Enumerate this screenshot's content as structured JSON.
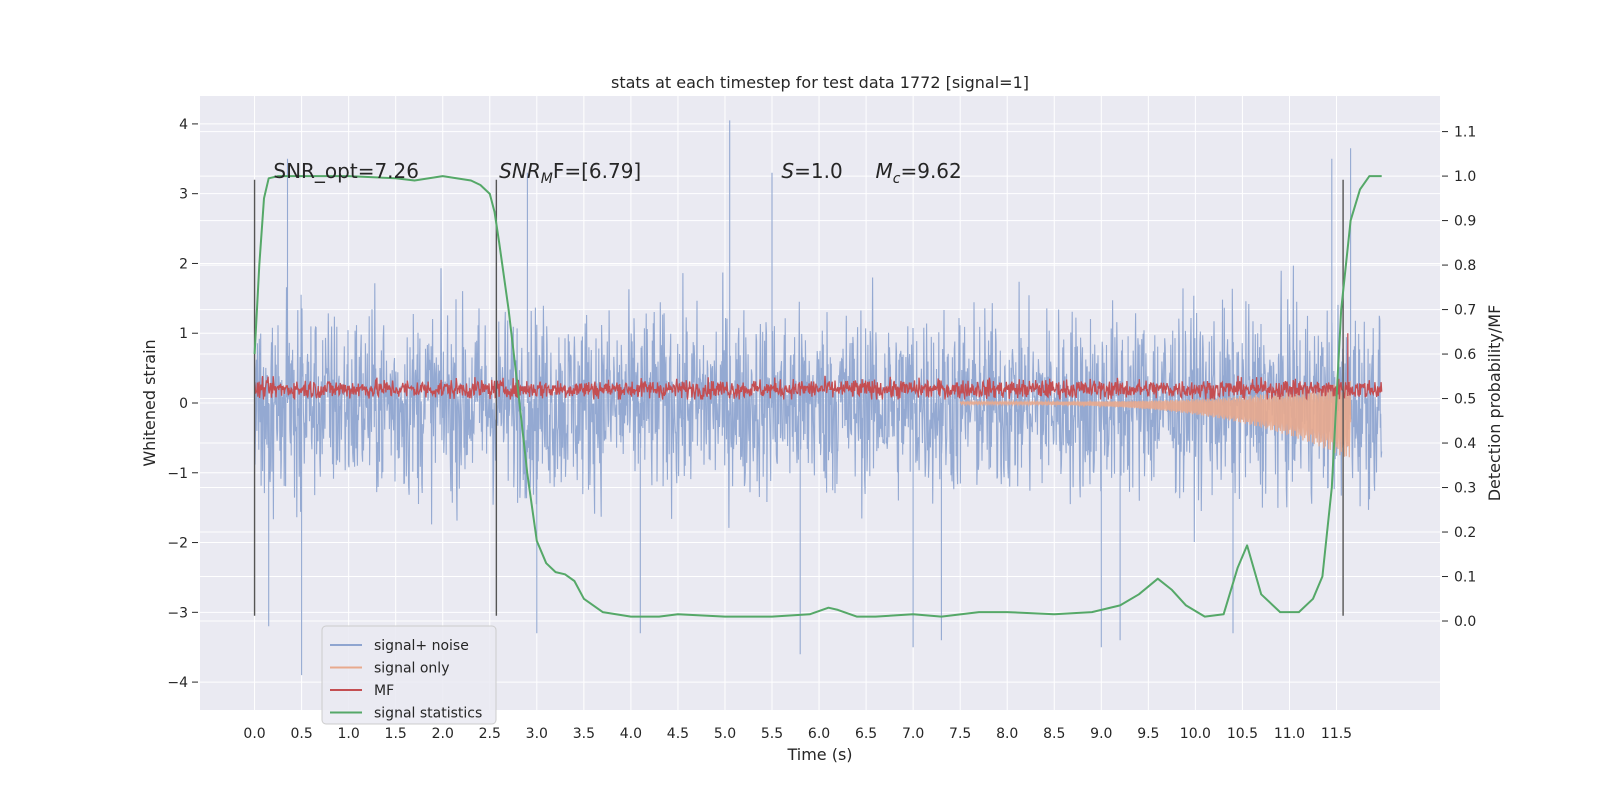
{
  "chart_data": {
    "type": "line",
    "title": "stats at each timestep for test data 1772 [signal=1]",
    "xlabel": "Time (s)",
    "ylabel": "Whitened strain",
    "ylabel_right": "Detection probability/MF",
    "xlim": [
      -0.58,
      12.6
    ],
    "ylim": [
      -4.4,
      4.4
    ],
    "ylim_right": [
      -0.2,
      1.18
    ],
    "x_ticks": [
      0.0,
      0.5,
      1.0,
      1.5,
      2.0,
      2.5,
      3.0,
      3.5,
      4.0,
      4.5,
      5.0,
      5.5,
      6.0,
      6.5,
      7.0,
      7.5,
      8.0,
      8.5,
      9.0,
      9.5,
      10.0,
      10.5,
      11.0,
      11.5
    ],
    "x_tick_labels": [
      "0.0",
      "0.5",
      "1.0",
      "1.5",
      "2.0",
      "2.5",
      "3.0",
      "3.5",
      "4.0",
      "4.5",
      "5.0",
      "5.5",
      "6.0",
      "6.5",
      "7.0",
      "7.5",
      "8.0",
      "8.5",
      "9.0",
      "9.5",
      "10.0",
      "10.5",
      "11.0",
      "11.5"
    ],
    "y_ticks": [
      -4,
      -3,
      -2,
      -1,
      0,
      1,
      2,
      3,
      4
    ],
    "y_tick_labels": [
      "−4",
      "−3",
      "−2",
      "−1",
      "0",
      "1",
      "2",
      "3",
      "4"
    ],
    "y_right_ticks": [
      0.0,
      0.1,
      0.2,
      0.3,
      0.4,
      0.5,
      0.6,
      0.7,
      0.8,
      0.9,
      1.0,
      1.1
    ],
    "y_right_tick_labels": [
      "0.0",
      "0.1",
      "0.2",
      "0.3",
      "0.4",
      "0.5",
      "0.6",
      "0.7",
      "0.8",
      "0.9",
      "1.0",
      "1.1"
    ],
    "grid": true,
    "legend_position": "lower-left",
    "annotations": [
      {
        "text": "SNR_opt=7.26",
        "x": 0.2
      },
      {
        "text": "SNR",
        "sub": "M",
        "tail": "F=[6.79]",
        "x": 2.6,
        "italic_head": true
      },
      {
        "text": "S",
        "tail": "=1.0",
        "x": 5.6,
        "italic_head": true
      },
      {
        "text": "M",
        "sub": "c",
        "tail": "=9.62",
        "x": 6.6,
        "italic_head": true
      }
    ],
    "vlines": [
      {
        "x": 0.0,
        "ymin": -3.05,
        "ymax": 3.2
      },
      {
        "x": 2.57,
        "ymin": -3.05,
        "ymax": 3.2
      },
      {
        "x": 11.57,
        "ymin": -3.05,
        "ymax": 3.2
      }
    ],
    "series": [
      {
        "name": "signal+ noise",
        "color": "#8fa5d0",
        "t_range": [
          0.0,
          11.98
        ],
        "typical_range": [
          -1.3,
          1.35
        ],
        "extremes": [
          {
            "x": 0.35,
            "y": 3.5
          },
          {
            "x": 0.5,
            "y": -3.9
          },
          {
            "x": 0.15,
            "y": -3.2
          },
          {
            "x": 2.9,
            "y": 3.3
          },
          {
            "x": 3.0,
            "y": -3.3
          },
          {
            "x": 4.1,
            "y": -3.3
          },
          {
            "x": 5.05,
            "y": 4.05
          },
          {
            "x": 5.5,
            "y": 3.3
          },
          {
            "x": 5.8,
            "y": -3.6
          },
          {
            "x": 7.0,
            "y": -3.5
          },
          {
            "x": 7.3,
            "y": -3.4
          },
          {
            "x": 9.0,
            "y": -3.5
          },
          {
            "x": 9.2,
            "y": -3.4
          },
          {
            "x": 11.45,
            "y": 3.5
          },
          {
            "x": 11.65,
            "y": 3.65
          },
          {
            "x": 10.4,
            "y": -3.3
          }
        ]
      },
      {
        "name": "signal only",
        "color": "#e8a98d",
        "t_range": [
          7.5,
          11.65
        ],
        "envelope_end": [
          -0.95,
          0.4
        ]
      },
      {
        "name": "MF",
        "color": "#c44e52",
        "t_range": [
          0.0,
          11.98
        ],
        "baseline_range": [
          0.05,
          0.45
        ],
        "spike": {
          "x": 11.62,
          "y": 1.0
        }
      },
      {
        "name": "signal statistics",
        "color": "#55a868",
        "axis": "right",
        "x": [
          0.0,
          0.05,
          0.1,
          0.15,
          0.25,
          0.5,
          1.0,
          1.5,
          1.7,
          2.0,
          2.3,
          2.4,
          2.5,
          2.55,
          2.6,
          2.7,
          2.8,
          2.9,
          3.0,
          3.1,
          3.2,
          3.3,
          3.4,
          3.5,
          3.7,
          4.0,
          4.3,
          4.5,
          5.0,
          5.5,
          5.9,
          6.1,
          6.2,
          6.4,
          6.6,
          7.0,
          7.3,
          7.7,
          8.0,
          8.5,
          8.9,
          9.2,
          9.4,
          9.6,
          9.75,
          9.9,
          10.1,
          10.3,
          10.45,
          10.55,
          10.7,
          10.9,
          11.1,
          11.25,
          11.35,
          11.45,
          11.55,
          11.65,
          11.75,
          11.85,
          11.98
        ],
        "y": [
          0.6,
          0.8,
          0.95,
          0.995,
          1.0,
          1.0,
          1.0,
          0.995,
          0.99,
          1.0,
          0.99,
          0.98,
          0.96,
          0.92,
          0.85,
          0.7,
          0.52,
          0.33,
          0.18,
          0.13,
          0.11,
          0.105,
          0.09,
          0.05,
          0.02,
          0.01,
          0.01,
          0.015,
          0.01,
          0.01,
          0.015,
          0.03,
          0.025,
          0.01,
          0.01,
          0.015,
          0.01,
          0.02,
          0.02,
          0.015,
          0.02,
          0.035,
          0.06,
          0.095,
          0.07,
          0.035,
          0.01,
          0.015,
          0.12,
          0.17,
          0.06,
          0.02,
          0.02,
          0.05,
          0.1,
          0.3,
          0.7,
          0.9,
          0.97,
          1.0,
          1.0
        ]
      }
    ]
  }
}
